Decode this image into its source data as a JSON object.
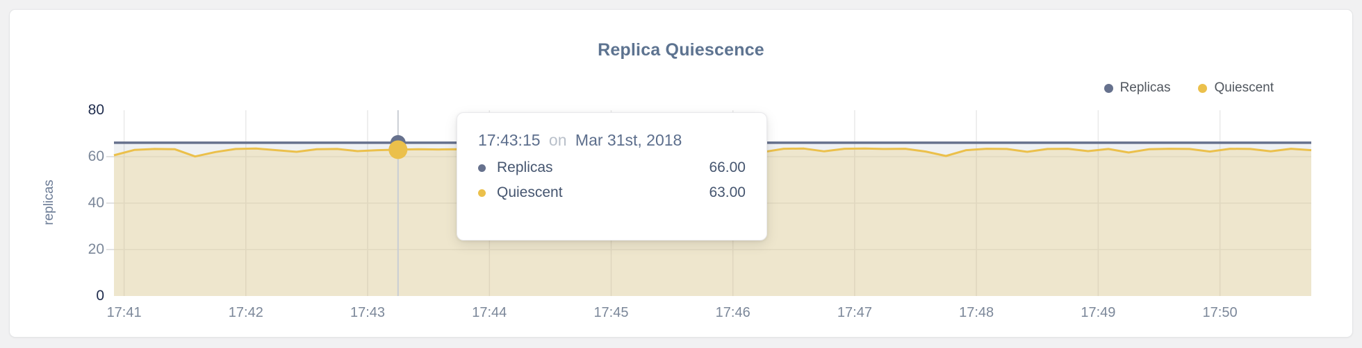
{
  "page": {
    "background": "#f1f1f2"
  },
  "card": {
    "background": "#ffffff",
    "border_color": "#e3e4e6"
  },
  "header": {
    "title": "Replica Quiescence",
    "title_color": "#5d7390"
  },
  "legend": {
    "items": [
      {
        "label": "Replicas",
        "color": "#66718D"
      },
      {
        "label": "Quiescent",
        "color": "#EBC04B"
      }
    ]
  },
  "tooltip": {
    "time": "17:43:15",
    "connector": "on",
    "date": "Mar 31st, 2018",
    "rows": [
      {
        "label": "Replicas",
        "value": "66.00",
        "color": "#66718D"
      },
      {
        "label": "Quiescent",
        "value": "63.00",
        "color": "#EBC04B"
      }
    ]
  },
  "axes": {
    "tick_color": "#7b8799",
    "tick_color_strong": "#1f2c4d",
    "grid_color_vertical": "#e9e9e9",
    "grid_color_horizontal": "#ececec",
    "crosshair_color": "#c9cdd4"
  },
  "chart_data": {
    "type": "area",
    "title": "Replica Quiescence",
    "xlabel": "",
    "ylabel": "replicas",
    "ylim": [
      0,
      80
    ],
    "yticks": [
      0,
      20,
      40,
      60,
      80
    ],
    "xticks": [
      "17:41",
      "17:42",
      "17:43",
      "17:44",
      "17:45",
      "17:46",
      "17:47",
      "17:48",
      "17:49",
      "17:50"
    ],
    "x_start": "17:40:55",
    "x_step_seconds": 10,
    "grid": true,
    "legend_position": "top-right",
    "selected_point": {
      "time": "17:43:15",
      "date": "Mar 31st, 2018",
      "Replicas": 66.0,
      "Quiescent": 63.0
    },
    "series": [
      {
        "name": "Replicas",
        "color": "#66718D",
        "fill": "rgba(102,113,141,0.10)",
        "constant": 66
      },
      {
        "name": "Quiescent",
        "color": "#EBC04B",
        "fill": "rgba(235,192,75,0.22)",
        "values": [
          60.6,
          62.9,
          63.3,
          63.2,
          60.1,
          62.0,
          63.3,
          63.5,
          62.8,
          62.1,
          63.2,
          63.3,
          62.4,
          62.8,
          63.0,
          63.2,
          63.1,
          63.2,
          63.0,
          63.1,
          63.2,
          63.0,
          63.1,
          63.2,
          63.0,
          63.1,
          63.2,
          63.1,
          63.3,
          63.2,
          63.4,
          65.8,
          62.0,
          63.4,
          63.5,
          62.3,
          63.4,
          63.5,
          63.3,
          63.4,
          62.2,
          60.3,
          62.8,
          63.4,
          63.3,
          62.1,
          63.3,
          63.4,
          62.4,
          63.3,
          61.8,
          63.2,
          63.4,
          63.3,
          62.2,
          63.4,
          63.3,
          62.3,
          63.4,
          62.8
        ]
      }
    ]
  }
}
